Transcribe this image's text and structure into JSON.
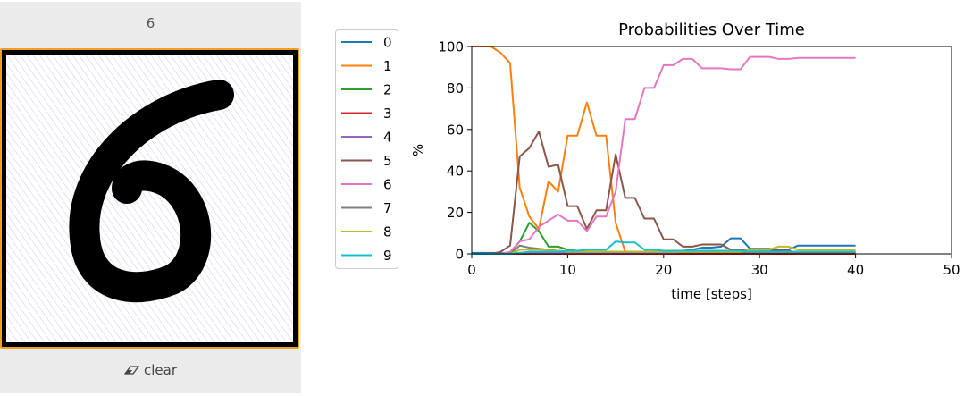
{
  "prediction": "6",
  "clear_label": "clear",
  "icons": {
    "clear": "eraser-icon"
  },
  "colors": {
    "canvas_border": "#f0a020",
    "stroke": "#000000",
    "hatch": "#c8c8f0"
  },
  "chart_data": {
    "type": "line",
    "title": "Probabilities Over Time",
    "xlabel": "time [steps]",
    "ylabel": "%",
    "xlim": [
      0,
      50
    ],
    "ylim": [
      0,
      100
    ],
    "xticks": [
      "0",
      "10",
      "20",
      "30",
      "40",
      "50"
    ],
    "yticks": [
      "0",
      "20",
      "40",
      "60",
      "80",
      "100"
    ],
    "legend_position": "left",
    "x": [
      0,
      1,
      2,
      3,
      4,
      5,
      6,
      7,
      8,
      9,
      10,
      11,
      12,
      13,
      14,
      15,
      16,
      17,
      18,
      19,
      20,
      21,
      22,
      23,
      24,
      25,
      26,
      27,
      28,
      29,
      30,
      31,
      32,
      33,
      34,
      35,
      36,
      37,
      38,
      39,
      40
    ],
    "series": [
      {
        "name": "0",
        "color": "#1f77b4",
        "values": [
          0.5,
          0.5,
          0.5,
          0.5,
          0.5,
          0.5,
          0.5,
          0.5,
          0.5,
          0.5,
          0.5,
          0.5,
          0.5,
          0.5,
          0.5,
          0.5,
          0.5,
          0.5,
          0.5,
          0.5,
          1,
          1,
          1.5,
          2,
          3,
          3,
          3.5,
          7.5,
          7.5,
          2.5,
          2.5,
          2.5,
          2,
          2,
          4,
          4,
          4,
          4,
          4,
          4,
          4
        ]
      },
      {
        "name": "1",
        "color": "#ff7f0e",
        "values": [
          100,
          100,
          100,
          97,
          92,
          32,
          18,
          12,
          35,
          30,
          57,
          57,
          73,
          57,
          57,
          15,
          1,
          1,
          1,
          1,
          1,
          1,
          1,
          1,
          1,
          1,
          1,
          1,
          1,
          1,
          1,
          1,
          1,
          1,
          1,
          1,
          1,
          1,
          1,
          1,
          1
        ]
      },
      {
        "name": "2",
        "color": "#2ca02c",
        "values": [
          0,
          0,
          0,
          0,
          0.5,
          6,
          15,
          11,
          3.5,
          3.5,
          2,
          1.5,
          1,
          1,
          1,
          0.5,
          0.5,
          0.5,
          0.5,
          0.5,
          0.5,
          0.5,
          0.5,
          0.5,
          0.5,
          0.5,
          0.5,
          0.5,
          0.5,
          0.5,
          0.5,
          0.5,
          0.5,
          0.5,
          0.5,
          0.5,
          0.5,
          0.5,
          0.5,
          0.5,
          0.5
        ]
      },
      {
        "name": "3",
        "color": "#d62728",
        "values": [
          0,
          0,
          0,
          0,
          0,
          0,
          0,
          0,
          0,
          0,
          0,
          0,
          0,
          0,
          0,
          0,
          0,
          0,
          0,
          0,
          0,
          0,
          0,
          0,
          0,
          0,
          0,
          0,
          0,
          0,
          0,
          0,
          0,
          0,
          0,
          0,
          0,
          0,
          0,
          0,
          0
        ]
      },
      {
        "name": "4",
        "color": "#9467bd",
        "values": [
          0,
          0,
          0,
          0,
          0,
          0.5,
          0.5,
          0.5,
          0.5,
          0.5,
          0.5,
          0.5,
          0.5,
          0.5,
          0.5,
          0.5,
          0.5,
          0.5,
          0.5,
          0.5,
          0.5,
          0.5,
          1,
          1,
          1,
          1,
          1,
          1,
          1,
          1,
          1,
          1,
          1,
          1,
          1,
          1,
          1,
          1,
          1,
          1,
          1
        ]
      },
      {
        "name": "5",
        "color": "#8c564b",
        "values": [
          0,
          0,
          0,
          1,
          4,
          47,
          51,
          59,
          42,
          43,
          23,
          23,
          12,
          21,
          21,
          48,
          27,
          27,
          17,
          17,
          7,
          7,
          3.5,
          3.5,
          4.5,
          4.5,
          4.5,
          2,
          2,
          1.5,
          1.5,
          1.5,
          1.5,
          1.5,
          0.5,
          0.5,
          0.5,
          0.5,
          0.5,
          0.5,
          0.5
        ]
      },
      {
        "name": "6",
        "color": "#e377c2",
        "values": [
          0,
          0,
          0,
          0,
          1,
          6,
          7,
          13,
          16,
          19,
          16,
          16,
          11,
          18,
          18,
          30,
          65,
          65,
          80,
          80,
          91,
          91,
          94,
          94,
          89.5,
          89.5,
          89.5,
          89,
          89,
          95,
          95,
          95,
          94,
          94,
          94.5,
          94.5,
          94.5,
          94.5,
          94.5,
          94.5,
          94.5
        ]
      },
      {
        "name": "7",
        "color": "#7f7f7f",
        "values": [
          0,
          0,
          0,
          0,
          0,
          4,
          3,
          2.5,
          2,
          1.5,
          1,
          1,
          1,
          1,
          1,
          1,
          1,
          1,
          1,
          1,
          1,
          1,
          1,
          1,
          1,
          1,
          1,
          1,
          1,
          1,
          1,
          1,
          1,
          1,
          1,
          1,
          1,
          1,
          1,
          1,
          1
        ]
      },
      {
        "name": "8",
        "color": "#bcbd22",
        "values": [
          0,
          0,
          0,
          0,
          0,
          2,
          2,
          2,
          1.5,
          1.5,
          1,
          1,
          1,
          1,
          1,
          1,
          1,
          1,
          1,
          1,
          1,
          1,
          1,
          1,
          1,
          1,
          1,
          1,
          1,
          2,
          2,
          2,
          3.5,
          3.5,
          2,
          2,
          2,
          2,
          2,
          2,
          2
        ]
      },
      {
        "name": "9",
        "color": "#17becf",
        "values": [
          0,
          0,
          0,
          0,
          0,
          0.5,
          1,
          1,
          1,
          1,
          1.5,
          1.5,
          2,
          2,
          2,
          6,
          5.5,
          5.5,
          2,
          2,
          1.5,
          1.5,
          1.5,
          1.5,
          1.5,
          1.5,
          1.5,
          1.5,
          1.5,
          1,
          1,
          1,
          1,
          1,
          1,
          1,
          1,
          1,
          1,
          1,
          1
        ]
      }
    ]
  }
}
